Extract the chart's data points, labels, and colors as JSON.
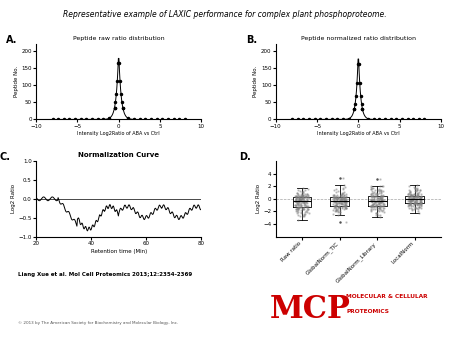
{
  "title": "Representative example of LAXIC performance for complex plant phosphoproteome.",
  "panel_A_title": "Peptide raw ratio distribution",
  "panel_B_title": "Peptide normalized ratio distribution",
  "panel_C_title": "Normalization Curve",
  "panel_A_xlabel": "Intensity Log2Ratio of ABA vs Ctrl",
  "panel_B_xlabel": "Intensity Log2Ratio of ABA vs Ctrl",
  "panel_A_ylabel": "Peptide No.",
  "panel_B_ylabel": "Peptide No.",
  "panel_C_xlabel": "Retention time (Min)",
  "panel_C_ylabel": "Log2 Ratio",
  "panel_D_ylabel": "Log2 Ratio",
  "panel_D_categories": [
    "Raw ratio",
    "GlobalNorm_TIC",
    "GlobalNorm_Library",
    "LocalNorm"
  ],
  "citation": "Liang Xue et al. Mol Cell Proteomics 2013;12:2354-2369",
  "copyright": "© 2013 by The American Society for Biochemistry and Molecular Biology, Inc.",
  "mcp_text": "MCP",
  "mcp_subtitle": "MOLECULAR & CELLULAR\nPROTEOMICS",
  "background_color": "#ffffff",
  "text_color": "#000000",
  "mcp_color": "#cc0000"
}
